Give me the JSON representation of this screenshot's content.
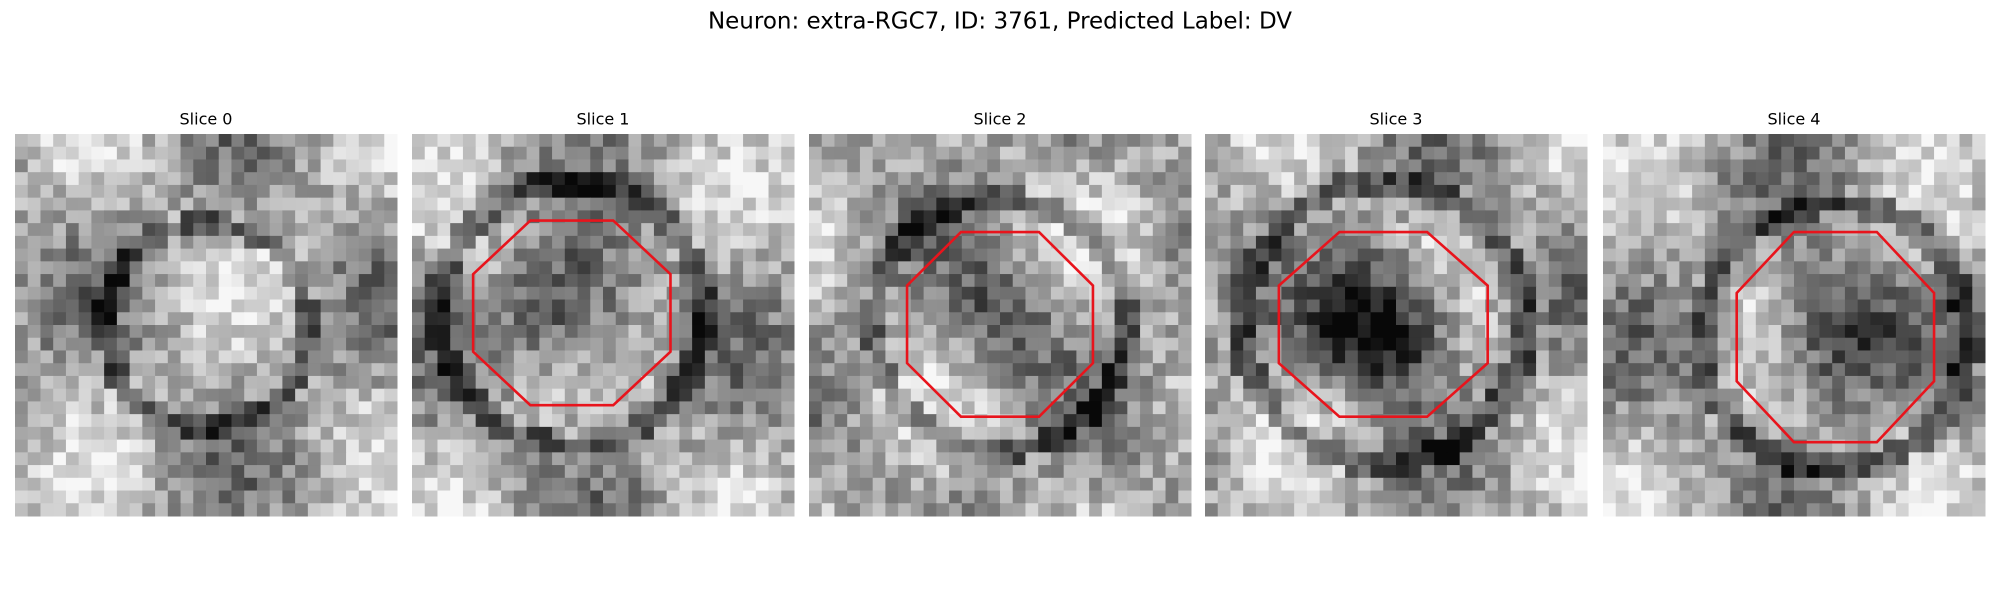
{
  "title": "Neuron: extra-RGC7, ID: 3761, Predicted Label: DV",
  "panels": [
    {
      "title": "Slice 0"
    },
    {
      "title": "Slice 1"
    },
    {
      "title": "Slice 2"
    },
    {
      "title": "Slice 3"
    },
    {
      "title": "Slice 4"
    }
  ]
}
